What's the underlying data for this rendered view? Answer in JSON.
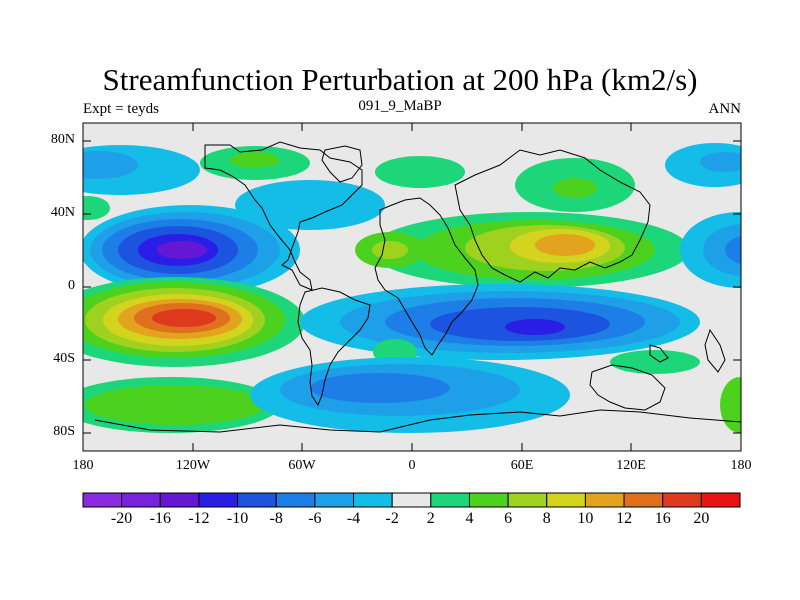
{
  "header": {
    "title": "Streamfunction Perturbation at 200 hPa (km2/s)",
    "left": "Expt = teyds",
    "center": "091_9_MaBP",
    "right": "ANN"
  },
  "map": {
    "projection": "cylindrical-equidistant",
    "lon_range": [
      -180,
      180
    ],
    "lat_range": [
      -90,
      90
    ],
    "x_ticks": [
      {
        "lon": -180,
        "label": "180"
      },
      {
        "lon": -120,
        "label": "120W"
      },
      {
        "lon": -60,
        "label": "60W"
      },
      {
        "lon": 0,
        "label": "0"
      },
      {
        "lon": 60,
        "label": "60E"
      },
      {
        "lon": 120,
        "label": "120E"
      },
      {
        "lon": 180,
        "label": "180"
      }
    ],
    "y_ticks": [
      {
        "lat": 80,
        "label": "80N"
      },
      {
        "lat": 40,
        "label": "40N"
      },
      {
        "lat": 0,
        "label": "0"
      },
      {
        "lat": -40,
        "label": "40S"
      },
      {
        "lat": -80,
        "label": "80S"
      }
    ],
    "background_color": "#e8e8e8",
    "coastline_color": "#000000"
  },
  "colorbar": {
    "levels": [
      "-20",
      "-16",
      "-12",
      "-10",
      "-8",
      "-6",
      "-4",
      "-2",
      "2",
      "4",
      "6",
      "8",
      "10",
      "12",
      "16",
      "20"
    ],
    "colors": [
      "#8a2be2",
      "#7722dd",
      "#6418d4",
      "#2a1ee6",
      "#1c54e0",
      "#1e7ee8",
      "#1ea0e8",
      "#14bce8",
      "#e8e8e8",
      "#1ed67a",
      "#4cd21e",
      "#9ed21e",
      "#d4d41e",
      "#e2a41e",
      "#e0701e",
      "#e03a1e",
      "#e81414"
    ]
  },
  "features": [
    {
      "name": "pacific-tropical-low",
      "lon": -130,
      "lat": 20,
      "value": -16,
      "extent_lon": 120,
      "extent_lat": 50
    },
    {
      "name": "pacific-subtropical-high",
      "lon": -125,
      "lat": -17,
      "value": 20,
      "extent_lon": 120,
      "extent_lat": 48
    },
    {
      "name": "asia-high",
      "lon": 80,
      "lat": 22,
      "value": 12,
      "extent_lon": 170,
      "extent_lat": 40
    },
    {
      "name": "indian-ocean-low",
      "lon": 70,
      "lat": -22,
      "value": -12,
      "extent_lon": 220,
      "extent_lat": 42
    },
    {
      "name": "southern-high-band",
      "lon": -120,
      "lat": -65,
      "value": 6,
      "extent_lon": 110,
      "extent_lat": 30
    },
    {
      "name": "southern-low-band",
      "lon": 0,
      "lat": -55,
      "value": -6,
      "extent_lon": 140,
      "extent_lat": 30
    },
    {
      "name": "north-pacific-low",
      "lon": -150,
      "lat": 70,
      "value": -6,
      "extent_lon": 90,
      "extent_lat": 25
    },
    {
      "name": "north-atlantic-high",
      "lon": -65,
      "lat": 70,
      "value": 4,
      "extent_lon": 80,
      "extent_lat": 20
    },
    {
      "name": "siberia-high",
      "lon": 85,
      "lat": 60,
      "value": 6,
      "extent_lon": 100,
      "extent_lat": 25
    },
    {
      "name": "west-pacific-low",
      "lon": 175,
      "lat": 25,
      "value": -10,
      "extent_lon": 60,
      "extent_lat": 40
    }
  ]
}
